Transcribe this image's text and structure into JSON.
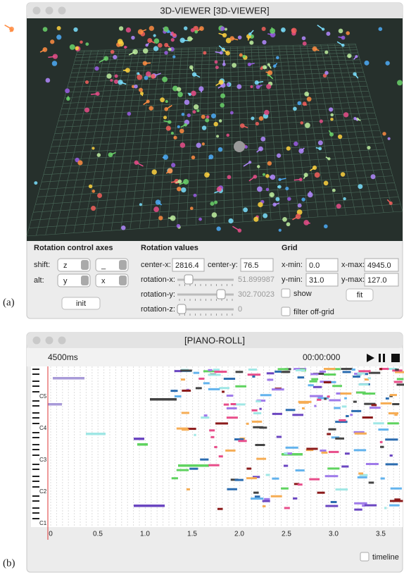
{
  "window_a": {
    "label": "(a)",
    "title": "3D-VIEWER [3D-VIEWER]",
    "rotation_axes": {
      "heading": "Rotation control axes",
      "shift_label": "shift:",
      "shift_1": "z",
      "shift_2": "_",
      "alt_label": "alt:",
      "alt_1": "y",
      "alt_2": "x",
      "init_button": "init"
    },
    "rotation_values": {
      "heading": "Rotation values",
      "center_x_label": "center-x:",
      "center_x": "2816.4",
      "center_y_label": "center-y:",
      "center_y": "76.5",
      "rotation_x_label": "rotation-x:",
      "rotation_x": "51.899987",
      "rotation_y_label": "rotation-y:",
      "rotation_y": "302.70023",
      "rotation_z_label": "rotation-z:",
      "rotation_z": "0"
    },
    "grid": {
      "heading": "Grid",
      "x_min_label": "x-min:",
      "x_min": "0.0",
      "x_max_label": "x-max:",
      "x_max": "4945.0",
      "y_min_label": "y-min:",
      "y_min": "31.0",
      "y_max_label": "y-max:",
      "y_max": "127.0",
      "show_label": "show",
      "show_checked": true,
      "fit_button": "fit",
      "filter_label": "filter off-grid",
      "filter_checked": false
    }
  },
  "window_b": {
    "label": "(b)",
    "title": "[PIANO-ROLL]",
    "duration": "4500ms",
    "time": "00:00:000",
    "key_labels": [
      "C5",
      "C4",
      "C3",
      "C2",
      "C1"
    ],
    "time_ticks": [
      "0",
      "0.5",
      "1.0",
      "1.5",
      "2.0",
      "2.5",
      "3.0",
      "3.5"
    ],
    "timeline_label": "timeline",
    "timeline_checked": false
  }
}
